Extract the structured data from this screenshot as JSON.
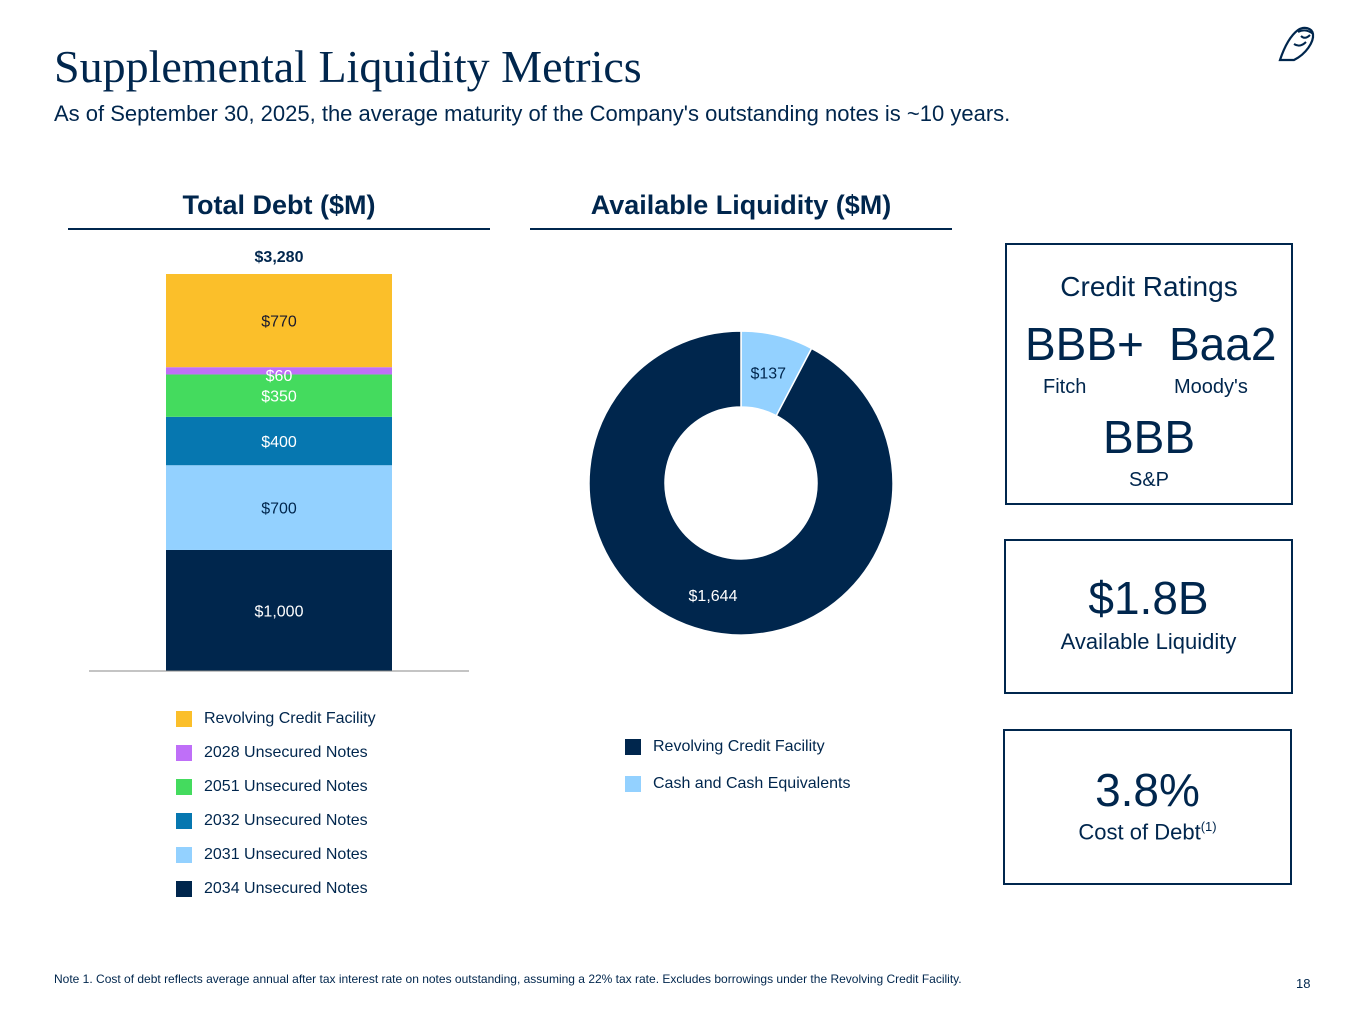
{
  "header": {
    "title": "Supplemental Liquidity Metrics",
    "subtitle": "As of September 30, 2025, the average maturity of the Company's outstanding notes is ~10 years.",
    "logo": "owl-logo"
  },
  "chart_data": [
    {
      "type": "bar",
      "stacked": true,
      "title": "Total Debt ($M)",
      "total_label": "$3,280",
      "series": [
        {
          "name": "2034 Unsecured Notes",
          "value": 1000,
          "label": "$1,000",
          "color": "#00264D",
          "text_color": "#ffffff"
        },
        {
          "name": "2031 Unsecured Notes",
          "value": 700,
          "label": "$700",
          "color": "#93D1FF",
          "text_color": "#00264D"
        },
        {
          "name": "2032 Unsecured Notes",
          "value": 400,
          "label": "$400",
          "color": "#0677B0",
          "text_color": "#ffffff"
        },
        {
          "name": "2051 Unsecured Notes",
          "value": 350,
          "label": "$350",
          "color": "#44DB5E",
          "text_color": "#ffffff"
        },
        {
          "name": "2028 Unsecured Notes",
          "value": 60,
          "label": "$60",
          "color": "#BF6FF8",
          "text_color": "#ffffff"
        },
        {
          "name": "Revolving Credit Facility",
          "value": 770,
          "label": "$770",
          "color": "#FBBF2A",
          "text_color": "#1a1a2e"
        }
      ],
      "legend": [
        "Revolving Credit Facility",
        "2028 Unsecured Notes",
        "2051 Unsecured Notes",
        "2032 Unsecured Notes",
        "2031 Unsecured Notes",
        "2034 Unsecured Notes"
      ],
      "legend_placement": "bottom"
    },
    {
      "type": "pie",
      "donut": true,
      "title": "Available Liquidity ($M)",
      "slices": [
        {
          "name": "Cash and Cash Equivalents",
          "value": 137,
          "label": "$137",
          "color": "#93D1FF",
          "text_color": "#00264D"
        },
        {
          "name": "Revolving Credit Facility",
          "value": 1644,
          "label": "$1,644",
          "color": "#00264D",
          "text_color": "#ffffff"
        }
      ],
      "legend": [
        "Revolving Credit Facility",
        "Cash and Cash Equivalents"
      ],
      "legend_placement": "bottom"
    }
  ],
  "ratings": {
    "title": "Credit Ratings",
    "fitch": {
      "rating": "BBB+",
      "agency": "Fitch"
    },
    "moodys": {
      "rating": "Baa2",
      "agency": "Moody's"
    },
    "sp": {
      "rating": "BBB",
      "agency": "S&P"
    }
  },
  "liquidity": {
    "value": "$1.8B",
    "label": "Available Liquidity"
  },
  "cost": {
    "value": "3.8%",
    "label": "Cost of Debt",
    "footnote": "(1)"
  },
  "footer": {
    "note": "Note 1. Cost of debt reflects average annual after tax interest rate on notes outstanding, assuming a 22% tax rate. Excludes borrowings under the Revolving Credit Facility.",
    "page": "18"
  }
}
